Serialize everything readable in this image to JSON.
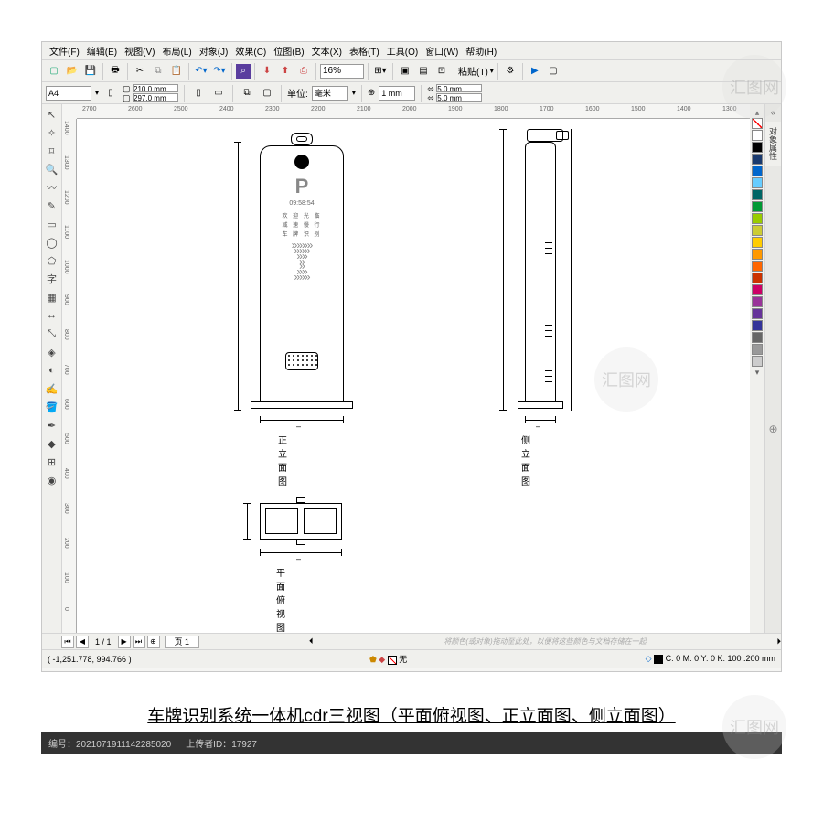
{
  "menus": [
    "文件(F)",
    "编辑(E)",
    "视图(V)",
    "布局(L)",
    "对象(J)",
    "效果(C)",
    "位图(B)",
    "文本(X)",
    "表格(T)",
    "工具(O)",
    "窗口(W)",
    "帮助(H)"
  ],
  "toolbar1": {
    "zoom": "16%",
    "paste_label": "粘贴(T)"
  },
  "toolbar2": {
    "page_size": "A4",
    "width": "210.0 mm",
    "height": "297.0 mm",
    "unit_label": "单位:",
    "unit": "毫米",
    "nudge": "1 mm",
    "dup_x": "5.0 mm",
    "dup_y": "5.0 mm"
  },
  "ruler_h": [
    "2700",
    "2600",
    "2500",
    "2400",
    "2300",
    "2200",
    "2100",
    "2000",
    "1900",
    "1800",
    "1700",
    "1600",
    "1500",
    "1400",
    "1300"
  ],
  "ruler_v": [
    "1400",
    "1300",
    "1200",
    "1100",
    "1000",
    "900",
    "800",
    "700",
    "600",
    "500",
    "400",
    "300",
    "200",
    "100",
    "0"
  ],
  "palette": [
    "#ffffff",
    "#000000",
    "#1a3a6e",
    "#0066cc",
    "#66ccff",
    "#006666",
    "#009933",
    "#99cc00",
    "#cccc33",
    "#ffcc00",
    "#ff9900",
    "#ff6600",
    "#cc3300",
    "#cc0066",
    "#993399",
    "#663399",
    "#333399",
    "#666666",
    "#999999",
    "#cccccc"
  ],
  "docker_tabs": [
    "对象属性"
  ],
  "pagenav": {
    "page_count": "1 / 1",
    "page_tab": "页 1"
  },
  "hint": "将颜色(或对象)拖动至此处，以便将这些颜色与文档存储在一起",
  "status": {
    "coords": "( -1,251.778, 994.766 )",
    "fill_label": "无",
    "right": "C: 0 M: 0 Y: 0 K: 100   .200 mm"
  },
  "drawing": {
    "front": {
      "p_letter": "P",
      "time": "09:58:54",
      "line1": "欢 迎 光 临",
      "line2": "减 速 慢 行",
      "line3": "车 牌 识 别",
      "label": "正立面图"
    },
    "side": {
      "label": "侧立面图"
    },
    "top": {
      "label": "平面俯视图"
    }
  },
  "caption": "车牌识别系统一体机cdr三视图（平面俯视图、正立面图、侧立面图）",
  "meta": {
    "id_label": "编号：",
    "id": "2021071911142285020",
    "uploader_label": "上传者ID：",
    "uploader": "17927"
  },
  "watermark": "汇图网"
}
